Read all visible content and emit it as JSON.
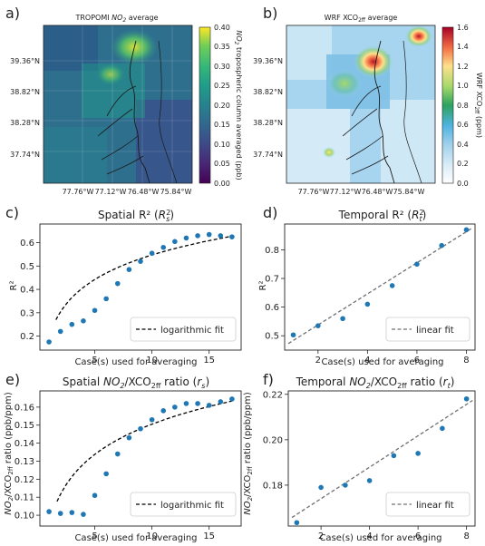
{
  "chart_data": [
    {
      "panel_label": "a)",
      "type": "heatmap",
      "title": "TROPOMI NO2 average",
      "colorbar_label": "NO2 tropospheric column averaged (ppb)",
      "colorbar_ticks": [
        "0.40",
        "0.35",
        "0.30",
        "0.25",
        "0.20",
        "0.15",
        "0.10",
        "0.05",
        "0.00"
      ],
      "colormap": "viridis",
      "x_ticks": [
        "77.76°W",
        "77.12°W",
        "76.48°W",
        "75.84°W"
      ],
      "y_ticks": [
        "39.36°N",
        "38.82°N",
        "38.28°N",
        "37.74°N"
      ]
    },
    {
      "panel_label": "b)",
      "type": "heatmap",
      "title": "WRF XCO2ff average",
      "colorbar_label": "WRF XCO2ff (ppm)",
      "colorbar_ticks": [
        "1.6",
        "1.4",
        "1.2",
        "1.0",
        "0.8",
        "0.6",
        "0.4",
        "0.2",
        "0.0"
      ],
      "colormap": "rainbow-white",
      "x_ticks": [
        "77.76°W",
        "77.12°W",
        "76.48°W",
        "75.84°W"
      ],
      "y_ticks": [
        "39.36°N",
        "38.82°N",
        "38.28°N",
        "37.74°N"
      ]
    },
    {
      "panel_label": "c)",
      "type": "scatter",
      "title": "Spatial R² (R²s)",
      "xlabel": "Case(s) used for averaging",
      "ylabel": "R²",
      "xlim": [
        0.2,
        17.8
      ],
      "ylim": [
        0.14,
        0.68
      ],
      "xticks": [
        5,
        10,
        15
      ],
      "yticks": [
        0.2,
        0.3,
        0.4,
        0.5,
        0.6
      ],
      "ytick_labels": [
        "0.2",
        "0.3",
        "0.4",
        "0.5",
        "0.6"
      ],
      "x": [
        1,
        2,
        3,
        4,
        5,
        6,
        7,
        8,
        9,
        10,
        11,
        12,
        13,
        14,
        15,
        16,
        17
      ],
      "values": [
        0.175,
        0.22,
        0.25,
        0.265,
        0.31,
        0.36,
        0.425,
        0.485,
        0.52,
        0.555,
        0.58,
        0.605,
        0.62,
        0.63,
        0.635,
        0.63,
        0.625
      ],
      "fit": {
        "name": "logarithmic fit",
        "kind": "log",
        "a": 0.1985,
        "b": 0.1515,
        "x_start": 1.6
      },
      "legend": "lower right"
    },
    {
      "panel_label": "d)",
      "type": "scatter",
      "title": "Temporal R² (R²t)",
      "xlabel": "Case(s) used for averaging",
      "ylabel": "R²",
      "xlim": [
        0.65,
        8.35
      ],
      "ylim": [
        0.45,
        0.89
      ],
      "xticks": [
        2,
        4,
        6,
        8
      ],
      "yticks": [
        0.5,
        0.6,
        0.7,
        0.8
      ],
      "ytick_labels": [
        "0.5",
        "0.6",
        "0.7",
        "0.8"
      ],
      "x": [
        1,
        2,
        3,
        4,
        5,
        6,
        7,
        8
      ],
      "values": [
        0.503,
        0.535,
        0.56,
        0.61,
        0.675,
        0.75,
        0.815,
        0.87
      ],
      "fit": {
        "name": "linear fit",
        "kind": "linear",
        "a": 0.4295,
        "b": 0.0542,
        "x_start": 0.8,
        "x_end": 8.25
      },
      "legend": "lower right"
    },
    {
      "panel_label": "e)",
      "type": "scatter",
      "title": "Spatial NO2/XCO2ff ratio (rs)",
      "xlabel": "Case(s) used for averaging",
      "ylabel": "NO2/XCO2ff ratio (ppb/ppm)",
      "xlim": [
        0.2,
        17.8
      ],
      "ylim": [
        0.094,
        0.169
      ],
      "xticks": [
        5,
        10,
        15
      ],
      "yticks": [
        0.1,
        0.11,
        0.12,
        0.13,
        0.14,
        0.15,
        0.16
      ],
      "ytick_labels": [
        "0.10",
        "0.11",
        "0.12",
        "0.13",
        "0.14",
        "0.15",
        "0.16"
      ],
      "x": [
        1,
        2,
        3,
        4,
        5,
        6,
        7,
        8,
        9,
        10,
        11,
        12,
        13,
        14,
        15,
        16,
        17
      ],
      "values": [
        0.102,
        0.101,
        0.1015,
        0.1005,
        0.111,
        0.123,
        0.134,
        0.143,
        0.148,
        0.153,
        0.158,
        0.16,
        0.162,
        0.162,
        0.161,
        0.163,
        0.1645
      ],
      "fit": {
        "name": "logarithmic fit",
        "kind": "log",
        "a": 0.0948,
        "b": 0.0242,
        "x_start": 1.7
      },
      "legend": "lower right"
    },
    {
      "panel_label": "f)",
      "type": "scatter",
      "title": "Temporal NO2/XCO2ff ratio (rt)",
      "xlabel": "Case(s) used for averaging",
      "ylabel": "NO2/XCO2ff ratio (ppb/ppm)",
      "xlim": [
        0.65,
        8.35
      ],
      "ylim": [
        0.162,
        0.2215
      ],
      "xticks": [
        2,
        4,
        6,
        8
      ],
      "yticks": [
        0.18,
        0.2,
        0.22
      ],
      "ytick_labels": [
        "0.18",
        "0.20",
        "0.22"
      ],
      "x": [
        1,
        2,
        3,
        4,
        5,
        6,
        7,
        8
      ],
      "values": [
        0.1635,
        0.179,
        0.18,
        0.182,
        0.193,
        0.194,
        0.205,
        0.218
      ],
      "fit": {
        "name": "linear fit",
        "kind": "linear",
        "a": 0.1602,
        "b": 0.00692,
        "x_start": 0.8,
        "x_end": 8.25
      },
      "legend": "lower right"
    }
  ],
  "colors": {
    "point": "#1f77b4",
    "fit_line_c": "#000000",
    "fit_line_d": "#707070",
    "axis": "#222222",
    "map_sea": "#3d5f8e"
  },
  "text": {
    "titles": {
      "a_prefix": "TROPOMI ",
      "a_no": "NO",
      "a_sub": "2",
      "a_suffix": " average",
      "b_prefix": "WRF XCO",
      "b_sub": "2ff",
      "b_suffix": " average",
      "c_main": "Spatial R² (",
      "c_r": "R",
      "c_sup": "2",
      "c_sub": "s",
      "c_close": ")",
      "d_main": "Temporal R² (",
      "d_r": "R",
      "d_sup": "2",
      "d_sub": "t",
      "d_close": ")",
      "e_main": "Spatial ",
      "e_no": "NO",
      "e_sub2": "2",
      "e_xco": "/XCO",
      "e_sub2ff": "2ff",
      "e_ratio": " ratio (",
      "e_r": "r",
      "e_rs": "s",
      "e_close": ")",
      "f_main": "Temporal ",
      "f_no": "NO",
      "f_sub2": "2",
      "f_xco": "/XCO",
      "f_sub2ff": "2ff",
      "f_ratio": " ratio (",
      "f_r": "r",
      "f_rt": "t",
      "f_close": ")"
    },
    "colorbar_a": {
      "no": "NO",
      "sub": "2",
      "rest": " tropospheric column averaged (ppb)"
    },
    "colorbar_b": {
      "pre": "WRF XCO",
      "sub": "2ff",
      "rest": " (ppm)"
    },
    "ylabel_ratio": {
      "no": "NO",
      "sub2": "2",
      "xco": "/XCO",
      "sub2ff": "2ff",
      "rest": " ratio (ppb/ppm)"
    }
  }
}
